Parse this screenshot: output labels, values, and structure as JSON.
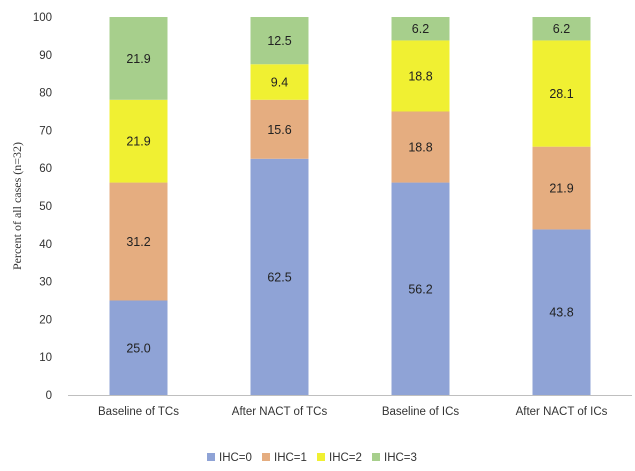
{
  "chart_data": {
    "type": "bar",
    "stacked": true,
    "title": "",
    "xlabel": "",
    "ylabel": "Percent of all cases (n=32)",
    "ylim": [
      0,
      100
    ],
    "yticks": [
      0,
      10,
      20,
      30,
      40,
      50,
      60,
      70,
      80,
      90,
      100
    ],
    "categories": [
      "Baseline of TCs",
      "After NACT of TCs",
      "Baseline of ICs",
      "After NACT of ICs"
    ],
    "series": [
      {
        "name": "IHC=0",
        "color": "#8fa3d6",
        "values": [
          25.0,
          62.5,
          56.2,
          43.8
        ],
        "labels": [
          "25.0",
          "62.5",
          "56.2",
          "43.8"
        ]
      },
      {
        "name": "IHC=1",
        "color": "#e5ad80",
        "values": [
          31.2,
          15.6,
          18.8,
          21.9
        ],
        "labels": [
          "31.2",
          "15.6",
          "18.8",
          "21.9"
        ]
      },
      {
        "name": "IHC=2",
        "color": "#f0f032",
        "values": [
          21.9,
          9.4,
          18.8,
          28.1
        ],
        "labels": [
          "21.9",
          "9.4",
          "18.8",
          "28.1"
        ]
      },
      {
        "name": "IHC=3",
        "color": "#a7cf8c",
        "values": [
          21.9,
          12.5,
          6.2,
          6.2
        ],
        "labels": [
          "21.9",
          "12.5",
          "6.2",
          "6.2"
        ]
      }
    ],
    "grid": false,
    "legend_position": "bottom-center"
  }
}
